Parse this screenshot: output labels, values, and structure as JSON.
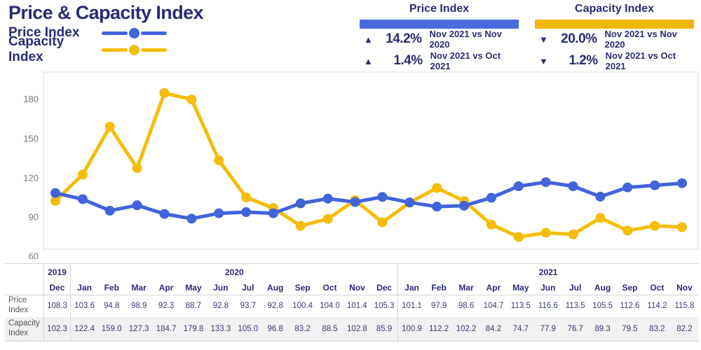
{
  "header": {
    "title": "Price & Capacity Index",
    "legend": [
      {
        "label": "Price Index"
      },
      {
        "label": "Capacity Index"
      }
    ]
  },
  "stats": [
    {
      "title": "Price Index",
      "bar_color": "#4A6BE0",
      "rows": [
        {
          "arrow": "▲",
          "value": "14.2%",
          "period": "Nov 2021 vs Nov 2020"
        },
        {
          "arrow": "▲",
          "value": "1.4%",
          "period": "Nov 2021 vs Oct 2021"
        }
      ]
    },
    {
      "title": "Capacity Index",
      "bar_color": "#F2B705",
      "rows": [
        {
          "arrow": "▼",
          "value": "20.0%",
          "period": "Nov 2021 vs Nov 2020"
        },
        {
          "arrow": "▼",
          "value": "1.2%",
          "period": "Nov 2021 vs Oct 2021"
        }
      ]
    }
  ],
  "chart_data": {
    "type": "line",
    "title": "Price & Capacity Index",
    "x_groups": [
      {
        "year": "2019",
        "months": [
          "Dec"
        ]
      },
      {
        "year": "2020",
        "months": [
          "Jan",
          "Feb",
          "Mar",
          "Apr",
          "May",
          "Jun",
          "Jul",
          "Aug",
          "Sep",
          "Oct",
          "Nov",
          "Dec"
        ]
      },
      {
        "year": "2021",
        "months": [
          "Jan",
          "Feb",
          "Mar",
          "Apr",
          "May",
          "Jun",
          "Jul",
          "Aug",
          "Sep",
          "Oct",
          "Nov"
        ]
      }
    ],
    "categories": [
      "Dec 2019",
      "Jan 2020",
      "Feb 2020",
      "Mar 2020",
      "Apr 2020",
      "May 2020",
      "Jun 2020",
      "Jul 2020",
      "Aug 2020",
      "Sep 2020",
      "Oct 2020",
      "Nov 2020",
      "Dec 2020",
      "Jan 2021",
      "Feb 2021",
      "Mar 2021",
      "Apr 2021",
      "May 2021",
      "Jun 2021",
      "Jul 2021",
      "Aug 2021",
      "Sep 2021",
      "Oct 2021",
      "Nov 2021"
    ],
    "series": [
      {
        "name": "Price Index",
        "color": "#4263DB",
        "values": [
          108.3,
          103.6,
          94.8,
          98.9,
          92.3,
          88.7,
          92.8,
          93.7,
          92.8,
          100.4,
          104.0,
          101.4,
          105.3,
          101.1,
          97.9,
          98.6,
          104.7,
          113.5,
          116.6,
          113.5,
          105.5,
          112.6,
          114.2,
          115.8
        ]
      },
      {
        "name": "Capacity Index",
        "color": "#F5BD0A",
        "values": [
          102.3,
          122.4,
          159.0,
          127.3,
          184.7,
          179.8,
          133.3,
          105.0,
          96.8,
          83.2,
          88.5,
          102.8,
          85.9,
          100.9,
          112.2,
          102.2,
          84.2,
          74.7,
          77.9,
          76.7,
          89.3,
          79.5,
          83.2,
          82.2
        ]
      }
    ],
    "yticks": [
      60,
      90,
      120,
      150,
      180
    ],
    "ylim": [
      60,
      200
    ],
    "grid": false,
    "legend_position": "top-left",
    "colors": {
      "navy_text": "#292C72",
      "axis_label": "#75787B",
      "plot_border": "#DCDCDC"
    }
  }
}
